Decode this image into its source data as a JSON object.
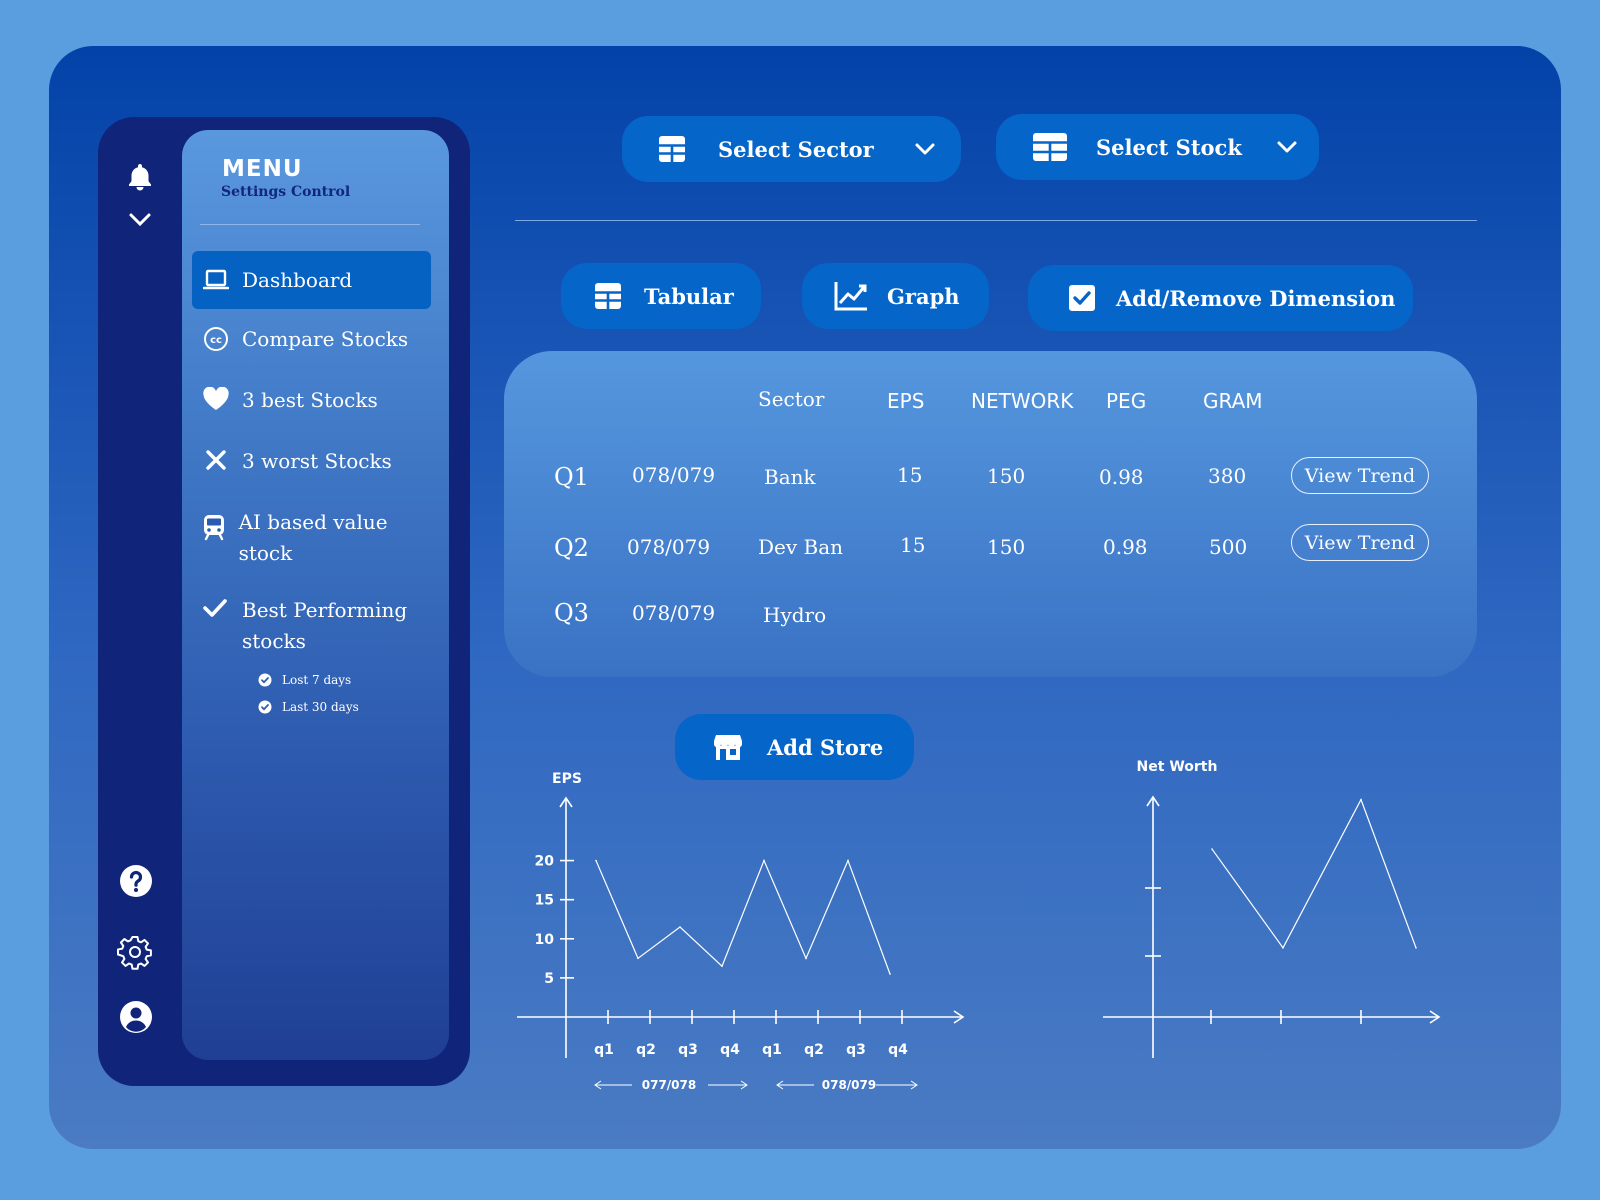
{
  "sidebar": {
    "menu_title": "MENU",
    "menu_subtitle": "Settings Control",
    "items": [
      {
        "label": "Dashboard",
        "icon": "laptop-icon"
      },
      {
        "label": "Compare Stocks",
        "icon": "cc-icon"
      },
      {
        "label": "3 best Stocks",
        "icon": "heart-icon"
      },
      {
        "label": "3 worst Stocks",
        "icon": "x-icon"
      },
      {
        "label": "AI based value stock",
        "icon": "train-icon"
      },
      {
        "label": "Best Performing stocks",
        "icon": "check-icon"
      }
    ],
    "sub_items": [
      {
        "label": "Lost 7 days"
      },
      {
        "label": "Last 30 days"
      }
    ],
    "rail_icons": [
      "bell-icon",
      "chevron-down-icon",
      "help-icon",
      "gear-icon",
      "user-icon"
    ]
  },
  "filters": {
    "sector_label": "Select Sector",
    "stock_label": "Select Stock"
  },
  "toolbar": {
    "tabular_label": "Tabular",
    "graph_label": "Graph",
    "dimension_label": "Add/Remove Dimension"
  },
  "table": {
    "headers": {
      "sector": "Sector",
      "eps": "EPS",
      "network": "NETWORK",
      "peg": "PEG",
      "gram": "GRAM"
    },
    "rows": [
      {
        "quarter": "Q1",
        "period": "078/079",
        "sector": "Bank",
        "eps": "15",
        "network": "150",
        "peg": "0.98",
        "gram": "380",
        "action": "View Trend"
      },
      {
        "quarter": "Q2",
        "period": "078/079",
        "sector": "Dev Ban",
        "eps": "15",
        "network": "150",
        "peg": "0.98",
        "gram": "500",
        "action": "View Trend"
      },
      {
        "quarter": "Q3",
        "period": "078/079",
        "sector": "Hydro"
      }
    ]
  },
  "add_store_label": "Add Store",
  "chart_data": [
    {
      "type": "line",
      "title": "EPS",
      "x": [
        "q1",
        "q2",
        "q3",
        "q4",
        "q1",
        "q2",
        "q3",
        "q4"
      ],
      "y_ticks": [
        5,
        10,
        15,
        20
      ],
      "values": [
        20,
        7.5,
        11.5,
        6.5,
        20,
        7.5,
        20,
        5.5
      ],
      "ylim": [
        0,
        28
      ],
      "period_labels": [
        "077/078",
        "078/079"
      ]
    },
    {
      "type": "line",
      "title": "Net Worth",
      "values": [
        17,
        7,
        22,
        7
      ]
    }
  ]
}
